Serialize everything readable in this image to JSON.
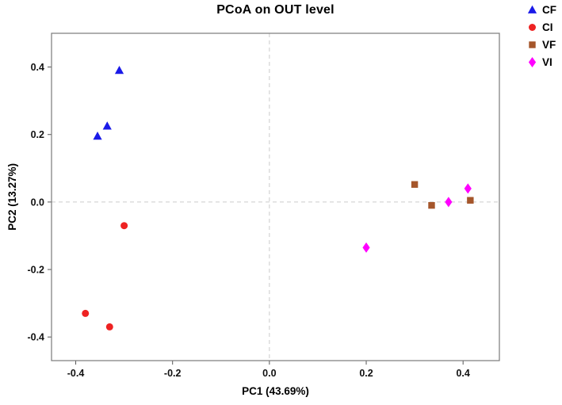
{
  "chart_data": {
    "type": "scatter",
    "title": "PCoA on OUT level",
    "xlabel": "PC1 (43.69%)",
    "ylabel": "PC2 (13.27%)",
    "xlim": [
      -0.45,
      0.475
    ],
    "ylim": [
      -0.47,
      0.5
    ],
    "xticks": [
      -0.4,
      -0.2,
      0,
      0.2,
      0.4
    ],
    "yticks": [
      -0.4,
      -0.2,
      0,
      0.2,
      0.4
    ],
    "grid": "light gray dashed crosshair lines at x=0 and y=0",
    "legend_position": "top-right outside plot",
    "plot_border_color": "#7a7a7a",
    "zero_line_color": "#cccccc",
    "series": [
      {
        "name": "CF",
        "marker": "triangle",
        "color": "#1a1ae8",
        "points": [
          [
            -0.31,
            0.39
          ],
          [
            -0.335,
            0.225
          ],
          [
            -0.355,
            0.195
          ]
        ]
      },
      {
        "name": "CI",
        "marker": "circle",
        "color": "#ee2222",
        "points": [
          [
            -0.3,
            -0.07
          ],
          [
            -0.38,
            -0.33
          ],
          [
            -0.33,
            -0.37
          ]
        ]
      },
      {
        "name": "VF",
        "marker": "square",
        "color": "#a5562b",
        "points": [
          [
            0.3,
            0.052
          ],
          [
            0.335,
            -0.01
          ],
          [
            0.415,
            0.005
          ]
        ]
      },
      {
        "name": "VI",
        "marker": "diamond",
        "color": "#ff00ff",
        "points": [
          [
            0.2,
            -0.135
          ],
          [
            0.37,
            0.0
          ],
          [
            0.41,
            0.04
          ]
        ]
      }
    ]
  }
}
